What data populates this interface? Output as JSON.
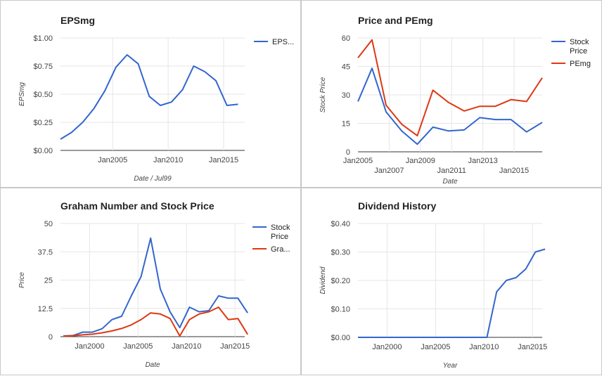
{
  "colors": {
    "blue": "#3366cc",
    "red": "#dc3912",
    "grid": "#e6e6e6",
    "baseline": "#333333",
    "text": "#222222",
    "muted": "#444444"
  },
  "chart_data": [
    {
      "type": "line",
      "title": "EPSmg",
      "xlabel": "Date / Jul99",
      "ylabel": "EPSmg",
      "x_tick_labels": [
        "Jan2005",
        "Jan2010",
        "Jan2015"
      ],
      "x_ticks": [
        2005,
        2010,
        2015
      ],
      "y_tick_labels": [
        "$1.00",
        "$0.75",
        "$0.50",
        "$0.25",
        "$0.00"
      ],
      "y_ticks": [
        1,
        0.75,
        0.5,
        0.25,
        0
      ],
      "xlim": [
        2000.3,
        2016.9
      ],
      "ylim": [
        0,
        1
      ],
      "legend_position": "right",
      "series": [
        {
          "name": "EPS...",
          "color": "#3366cc",
          "x": [
            2000.3,
            2001.3,
            2002.3,
            2003.3,
            2004.3,
            2005.3,
            2006.3,
            2007.3,
            2008.3,
            2009.3,
            2010.3,
            2011.3,
            2012.3,
            2013.3,
            2014.3,
            2015.3,
            2016.3
          ],
          "y": [
            0.1,
            0.16,
            0.25,
            0.37,
            0.53,
            0.74,
            0.85,
            0.77,
            0.48,
            0.4,
            0.43,
            0.54,
            0.75,
            0.7,
            0.62,
            0.4,
            0.41
          ]
        }
      ]
    },
    {
      "type": "line",
      "title": "Price and PEmg",
      "xlabel": "Date",
      "ylabel": "Stock Price",
      "x_tick_labels": [
        "Jan2005",
        "Jan2007",
        "Jan2009",
        "Jan2011",
        "Jan2013",
        "Jan2015"
      ],
      "x_ticks": [
        2005,
        2007,
        2009,
        2011,
        2013,
        2015
      ],
      "y_tick_labels": [
        "60",
        "45",
        "30",
        "15",
        "0"
      ],
      "y_ticks": [
        60,
        45,
        30,
        15,
        0
      ],
      "xlim": [
        2005,
        2016.8
      ],
      "ylim": [
        0,
        60
      ],
      "legend_position": "right",
      "series": [
        {
          "name": "Stock Price",
          "color": "#3366cc",
          "x": [
            2005,
            2005.9,
            2006.8,
            2007.8,
            2008.8,
            2009.8,
            2010.8,
            2011.8,
            2012.8,
            2013.8,
            2014.8,
            2015.8,
            2016.8
          ],
          "y": [
            26.5,
            44,
            21,
            11,
            4,
            13,
            11,
            11.5,
            18,
            17,
            17,
            10.5,
            15.5
          ]
        },
        {
          "name": "PEmg",
          "color": "#dc3912",
          "x": [
            2005,
            2005.9,
            2006.8,
            2007.8,
            2008.8,
            2009.8,
            2010.8,
            2011.8,
            2012.8,
            2013.8,
            2014.8,
            2015.8,
            2016.8
          ],
          "y": [
            49.5,
            59,
            24.5,
            14.5,
            8.5,
            32.5,
            26,
            21.5,
            24,
            24,
            27.5,
            26.5,
            39
          ]
        }
      ]
    },
    {
      "type": "line",
      "title": "Graham Number and Stock Price",
      "xlabel": "Date",
      "ylabel": "Price",
      "x_tick_labels": [
        "Jan2000",
        "Jan2005",
        "Jan2010",
        "Jan2015"
      ],
      "x_ticks": [
        2000,
        2005,
        2010,
        2015
      ],
      "y_tick_labels": [
        "50",
        "37.5",
        "25",
        "12.5",
        "0"
      ],
      "y_ticks": [
        50,
        37.5,
        25,
        12.5,
        0
      ],
      "xlim": [
        1997,
        2016
      ],
      "ylim": [
        0,
        50
      ],
      "legend_position": "right",
      "series": [
        {
          "name": "Stock Price",
          "color": "#3366cc",
          "x": [
            1997.3,
            1998.3,
            1999.3,
            2000.3,
            2001.3,
            2002.3,
            2003.3,
            2004.3,
            2005.3,
            2006.3,
            2007.3,
            2008.3,
            2009.3,
            2010.3,
            2011.3,
            2012.3,
            2013.3,
            2014.3,
            2015.3,
            2016.3
          ],
          "y": [
            0.3,
            0.5,
            2,
            2,
            3.5,
            7.5,
            9,
            18,
            26.5,
            43.5,
            21,
            11,
            4,
            13,
            11,
            11.5,
            18,
            17,
            17,
            10.5
          ]
        },
        {
          "name": "Gra...",
          "color": "#dc3912",
          "x": [
            1997.3,
            1998.3,
            1999.3,
            2000.3,
            2001.3,
            2002.3,
            2003.3,
            2004.3,
            2005.3,
            2006.3,
            2007.3,
            2008.3,
            2009.3,
            2010.3,
            2011.3,
            2012.3,
            2013.3,
            2014.3,
            2015.3,
            2016.3
          ],
          "y": [
            0.2,
            0.4,
            0.8,
            1.1,
            1.7,
            2.5,
            3.6,
            5.2,
            7.5,
            10.5,
            10,
            8,
            0.3,
            7.5,
            10,
            11,
            13,
            7.5,
            8,
            1
          ]
        }
      ]
    },
    {
      "type": "line",
      "title": "Dividend History",
      "xlabel": "Year",
      "ylabel": "Dividend",
      "x_tick_labels": [
        "Jan2000",
        "Jan2005",
        "Jan2010",
        "Jan2015"
      ],
      "x_ticks": [
        2000,
        2005,
        2010,
        2015
      ],
      "y_tick_labels": [
        "$0.40",
        "$0.30",
        "$0.20",
        "$0.10",
        "$0.00"
      ],
      "y_ticks": [
        0.4,
        0.3,
        0.2,
        0.1,
        0
      ],
      "xlim": [
        1997,
        2016
      ],
      "ylim": [
        0,
        0.4
      ],
      "legend_position": "none",
      "series": [
        {
          "name": "",
          "color": "#3366cc",
          "x": [
            1997,
            2010.3,
            2011.3,
            2012.3,
            2013.3,
            2014.3,
            2015.3,
            2016.3
          ],
          "y": [
            0,
            0,
            0.16,
            0.2,
            0.21,
            0.24,
            0.3,
            0.31
          ]
        }
      ]
    }
  ]
}
